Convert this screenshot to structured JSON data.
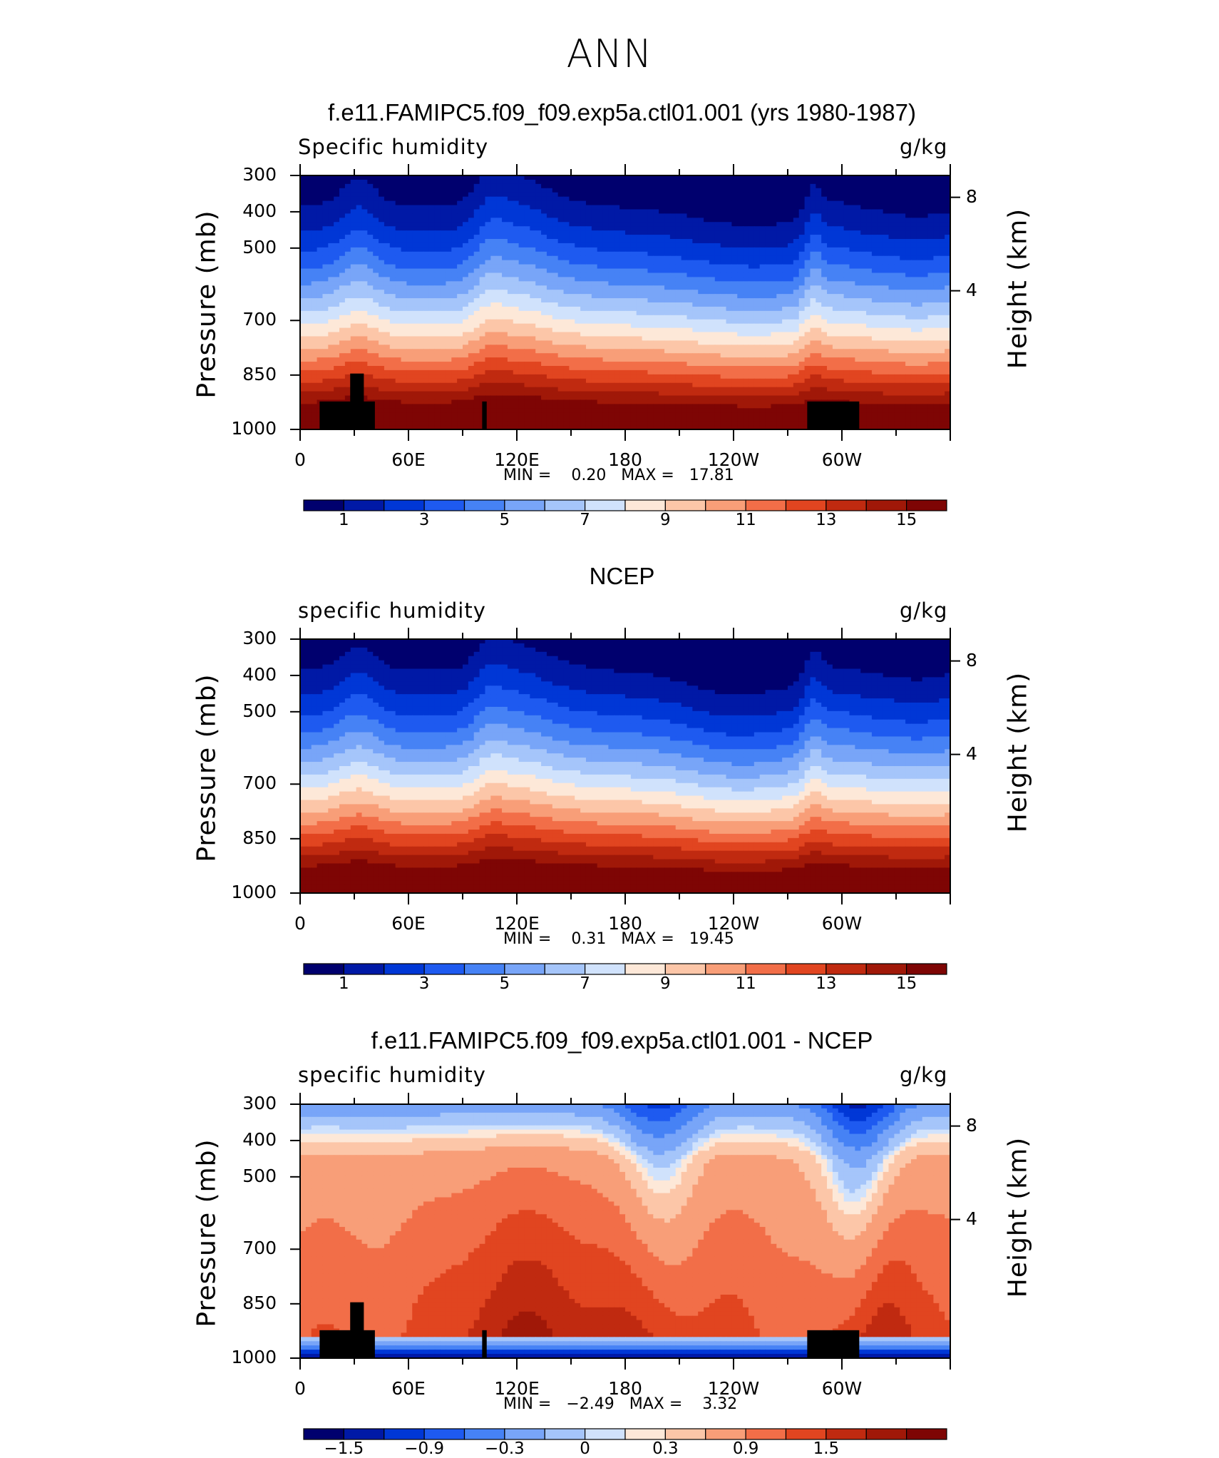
{
  "figure": {
    "season": "ANN"
  },
  "panels": [
    {
      "title": "f.e11.FAMIPC5.f09_f09.exp5a.ctl01.001 (yrs 1980-1987)",
      "left_label": "Specific humidity",
      "units": "g/kg",
      "min_text": "MIN =    0.20   MAX =   17.81"
    },
    {
      "title": "NCEP",
      "left_label": "specific humidity",
      "units": "g/kg",
      "min_text": "MIN =    0.31   MAX =   19.45"
    },
    {
      "title": "f.e11.FAMIPC5.f09_f09.exp5a.ctl01.001 - NCEP",
      "left_label": "specific humidity",
      "units": "g/kg",
      "min_text": "MIN =   −2.49   MAX =    3.32"
    }
  ],
  "axes": {
    "ylabel": "Pressure (mb)",
    "y2label": "Height (km)",
    "y_ticks": [
      "300",
      "400",
      "500",
      "700",
      "850",
      "1000"
    ],
    "y2_ticks": [
      "8",
      "4"
    ],
    "x_ticks": [
      "0",
      "60E",
      "120E",
      "180",
      "120W",
      "60W"
    ]
  },
  "colorbars": {
    "abs": [
      "1",
      "3",
      "5",
      "7",
      "9",
      "11",
      "13",
      "15"
    ],
    "diff": [
      "−1.5",
      "−0.9",
      "−0.3",
      "0",
      "0.3",
      "0.9",
      "1.5"
    ]
  },
  "colors": {
    "palette": [
      "#00006e",
      "#0019a6",
      "#0037d6",
      "#1e5af0",
      "#4682f5",
      "#78a5f8",
      "#a5c5fa",
      "#d0e2fc",
      "#fde8d8",
      "#fcc6a8",
      "#f89e78",
      "#f26e48",
      "#e14520",
      "#c02a10",
      "#a01808",
      "#7e0504"
    ]
  },
  "chart_data": [
    {
      "type": "heatmap",
      "title": "f.e11.FAMIPC5.f09_f09.exp5a.ctl01.001 (yrs 1980-1987)",
      "subtitle": "Specific humidity",
      "units": "g/kg",
      "xlabel": "",
      "ylabel": "Pressure (mb)",
      "y2label": "Height (km)",
      "x_ticks": [
        "0",
        "60E",
        "120E",
        "180",
        "120W",
        "60W"
      ],
      "y_ticks": [
        300,
        400,
        500,
        700,
        850,
        1000
      ],
      "y2_ticks": [
        8,
        4
      ],
      "contour_levels": [
        1,
        2,
        3,
        4,
        5,
        6,
        7,
        8,
        9,
        10,
        11,
        12,
        13,
        14,
        15
      ],
      "min": 0.2,
      "max": 17.81
    },
    {
      "type": "heatmap",
      "title": "NCEP",
      "subtitle": "specific humidity",
      "units": "g/kg",
      "xlabel": "",
      "ylabel": "Pressure (mb)",
      "y2label": "Height (km)",
      "x_ticks": [
        "0",
        "60E",
        "120E",
        "180",
        "120W",
        "60W"
      ],
      "y_ticks": [
        300,
        400,
        500,
        700,
        850,
        1000
      ],
      "y2_ticks": [
        8,
        4
      ],
      "contour_levels": [
        1,
        2,
        3,
        4,
        5,
        6,
        7,
        8,
        9,
        10,
        11,
        12,
        13,
        14,
        15
      ],
      "min": 0.31,
      "max": 19.45
    },
    {
      "type": "heatmap",
      "title": "f.e11.FAMIPC5.f09_f09.exp5a.ctl01.001 - NCEP",
      "subtitle": "specific humidity",
      "units": "g/kg",
      "xlabel": "",
      "ylabel": "Pressure (mb)",
      "y2label": "Height (km)",
      "x_ticks": [
        "0",
        "60E",
        "120E",
        "180",
        "120W",
        "60W"
      ],
      "y_ticks": [
        300,
        400,
        500,
        700,
        850,
        1000
      ],
      "y2_ticks": [
        8,
        4
      ],
      "contour_levels": [
        -1.8,
        -1.5,
        -1.2,
        -0.9,
        -0.6,
        -0.3,
        -0.1,
        0,
        0.1,
        0.3,
        0.6,
        0.9,
        1.2,
        1.5,
        1.8
      ],
      "min": -2.49,
      "max": 3.32
    }
  ]
}
